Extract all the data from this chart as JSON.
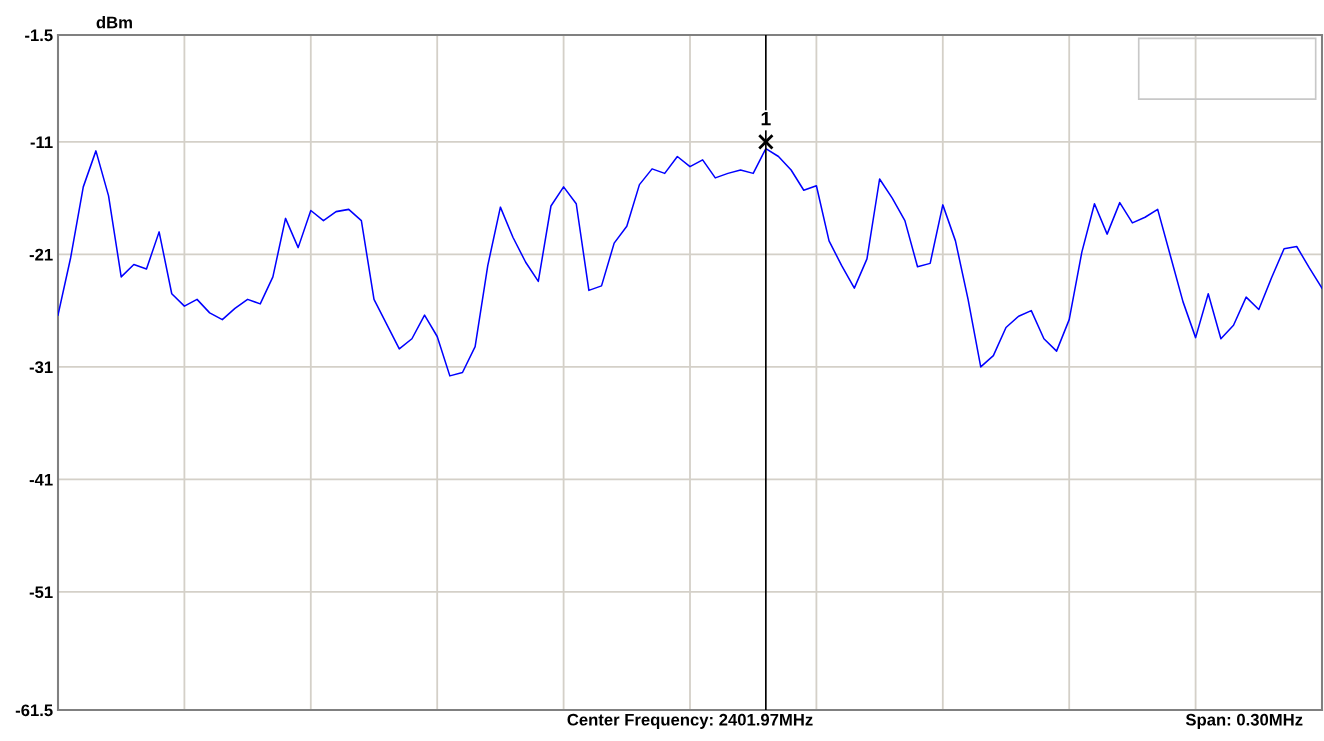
{
  "chart_data": {
    "type": "line",
    "ylabel": "dBm",
    "categories": [
      null,
      null,
      null,
      null,
      null,
      null,
      null,
      null,
      null,
      null,
      null,
      null,
      null,
      null,
      null,
      null,
      null,
      null,
      null,
      null,
      null,
      null,
      null,
      null,
      null,
      null,
      null,
      null,
      null,
      null,
      null,
      null,
      null,
      null,
      null,
      null,
      null,
      null,
      null,
      null,
      null,
      null,
      null,
      null,
      null,
      null,
      null,
      null,
      null,
      null,
      null,
      null,
      null,
      null,
      null,
      null,
      null,
      null,
      null,
      null,
      null,
      null,
      null,
      null,
      null,
      null,
      null,
      null,
      null,
      null,
      null,
      null,
      null,
      null,
      null,
      null,
      null,
      null,
      null,
      null,
      null,
      null,
      null,
      null,
      null,
      null,
      null,
      null,
      null,
      null,
      null,
      null,
      null,
      null,
      null,
      null,
      null,
      null,
      null,
      null,
      null
    ],
    "ylim": [
      -61.5,
      -1.5
    ],
    "yticks": [
      -61.5,
      -51,
      -41,
      -31,
      -21,
      -11,
      -1.5
    ],
    "grid": true,
    "legend": false,
    "series": [
      {
        "color": "#0000ff",
        "line_style": "solid",
        "marker": "none",
        "values": [
          -26.4,
          -21.3,
          -15.0,
          -11.8,
          -15.8,
          -23.0,
          -21.9,
          -22.3,
          -19.0,
          -24.5,
          -25.6,
          -25.0,
          -26.2,
          -26.8,
          -25.8,
          -25.0,
          -25.4,
          -23.0,
          -17.8,
          -20.4,
          -17.1,
          -18.0,
          -17.2,
          -17.0,
          -18.0,
          -25.0,
          -27.2,
          -29.4,
          -28.5,
          -26.4,
          -28.3,
          -31.8,
          -31.5,
          -29.2,
          -22.0,
          -16.8,
          -19.5,
          -21.7,
          -23.4,
          -16.7,
          -15.0,
          -16.5,
          -24.2,
          -23.8,
          -20.0,
          -18.5,
          -14.8,
          -13.4,
          -13.8,
          -12.3,
          -13.2,
          -12.6,
          -14.2,
          -13.8,
          -13.5,
          -13.8,
          -11.6,
          -12.3,
          -13.5,
          -15.3,
          -14.9,
          -19.8,
          -22.0,
          -24.0,
          -21.4,
          -14.3,
          -16.0,
          -18.0,
          -22.1,
          -21.8,
          -16.6,
          -19.8,
          -25.0,
          -31.0,
          -30.0,
          -27.5,
          -26.5,
          -26.0,
          -28.5,
          -29.6,
          -26.8,
          -20.8,
          -16.5,
          -19.2,
          -16.4,
          -18.2,
          -17.7,
          -17.0,
          -21.1,
          -25.2,
          -28.4,
          -24.5,
          -28.5,
          -27.3,
          -24.8,
          -25.9,
          -23.1,
          -20.5,
          -20.3,
          -22.2,
          -24.0
        ]
      }
    ],
    "annotations": [
      {
        "text": "1",
        "y": -11
      },
      "Center Frequency: 2401.97MHz",
      "Span: 0.30MHz"
    ]
  }
}
